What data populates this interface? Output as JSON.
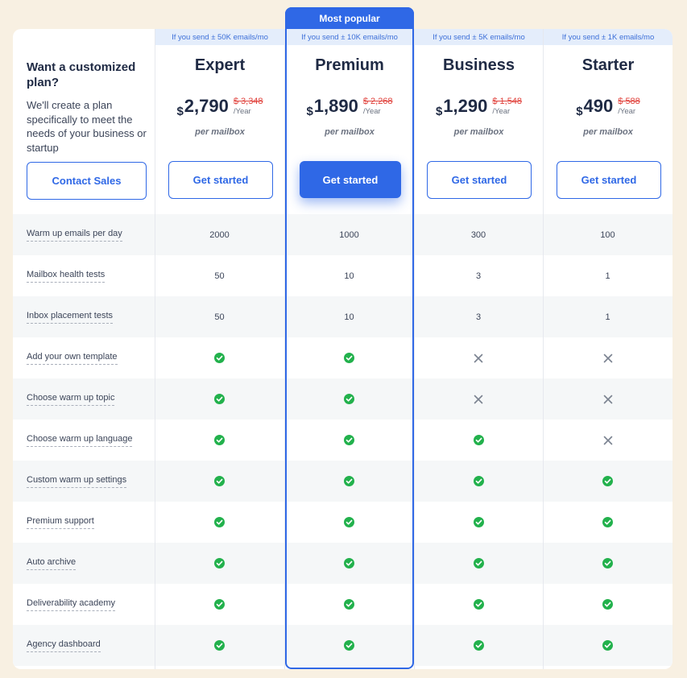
{
  "popular_badge": "Most popular",
  "custom": {
    "title": "Want a customized plan?",
    "description": "We'll create a plan specifically to meet the needs of your business or startup",
    "button": "Contact Sales"
  },
  "currency": "$",
  "per_year": "/Year",
  "per_mailbox": "per mailbox",
  "get_started": "Get started",
  "plans": [
    {
      "strip": "If you send ± 50K emails/mo",
      "name": "Expert",
      "price": "2,790",
      "old_price": "$ 3,348"
    },
    {
      "strip": "If you send ± 10K emails/mo",
      "name": "Premium",
      "price": "1,890",
      "old_price": "$ 2,268"
    },
    {
      "strip": "If you send ± 5K emails/mo",
      "name": "Business",
      "price": "1,290",
      "old_price": "$ 1,548"
    },
    {
      "strip": "If you send ± 1K emails/mo",
      "name": "Starter",
      "price": "490",
      "old_price": "$ 588"
    }
  ],
  "features": [
    {
      "label": "Warm up emails per day",
      "values": [
        "2000",
        "1000",
        "300",
        "100"
      ]
    },
    {
      "label": "Mailbox health tests",
      "values": [
        "50",
        "10",
        "3",
        "1"
      ]
    },
    {
      "label": "Inbox placement tests",
      "values": [
        "50",
        "10",
        "3",
        "1"
      ]
    },
    {
      "label": "Add your own template",
      "values": [
        "check",
        "check",
        "cross",
        "cross"
      ]
    },
    {
      "label": "Choose warm up topic",
      "values": [
        "check",
        "check",
        "cross",
        "cross"
      ]
    },
    {
      "label": "Choose warm up language",
      "values": [
        "check",
        "check",
        "check",
        "cross"
      ]
    },
    {
      "label": "Custom warm up settings",
      "values": [
        "check",
        "check",
        "check",
        "check"
      ]
    },
    {
      "label": "Premium support",
      "values": [
        "check",
        "check",
        "check",
        "check"
      ]
    },
    {
      "label": "Auto archive",
      "values": [
        "check",
        "check",
        "check",
        "check"
      ]
    },
    {
      "label": "Deliverability academy",
      "values": [
        "check",
        "check",
        "check",
        "check"
      ]
    },
    {
      "label": "Agency dashboard",
      "values": [
        "check",
        "check",
        "check",
        "check"
      ]
    }
  ],
  "icons": {
    "included": "check-circle-icon",
    "excluded": "cross-icon"
  },
  "colors": {
    "accent": "#2f68e6",
    "check": "#22b14c",
    "old_price": "#e0403a",
    "background": "#f8f0e2"
  }
}
